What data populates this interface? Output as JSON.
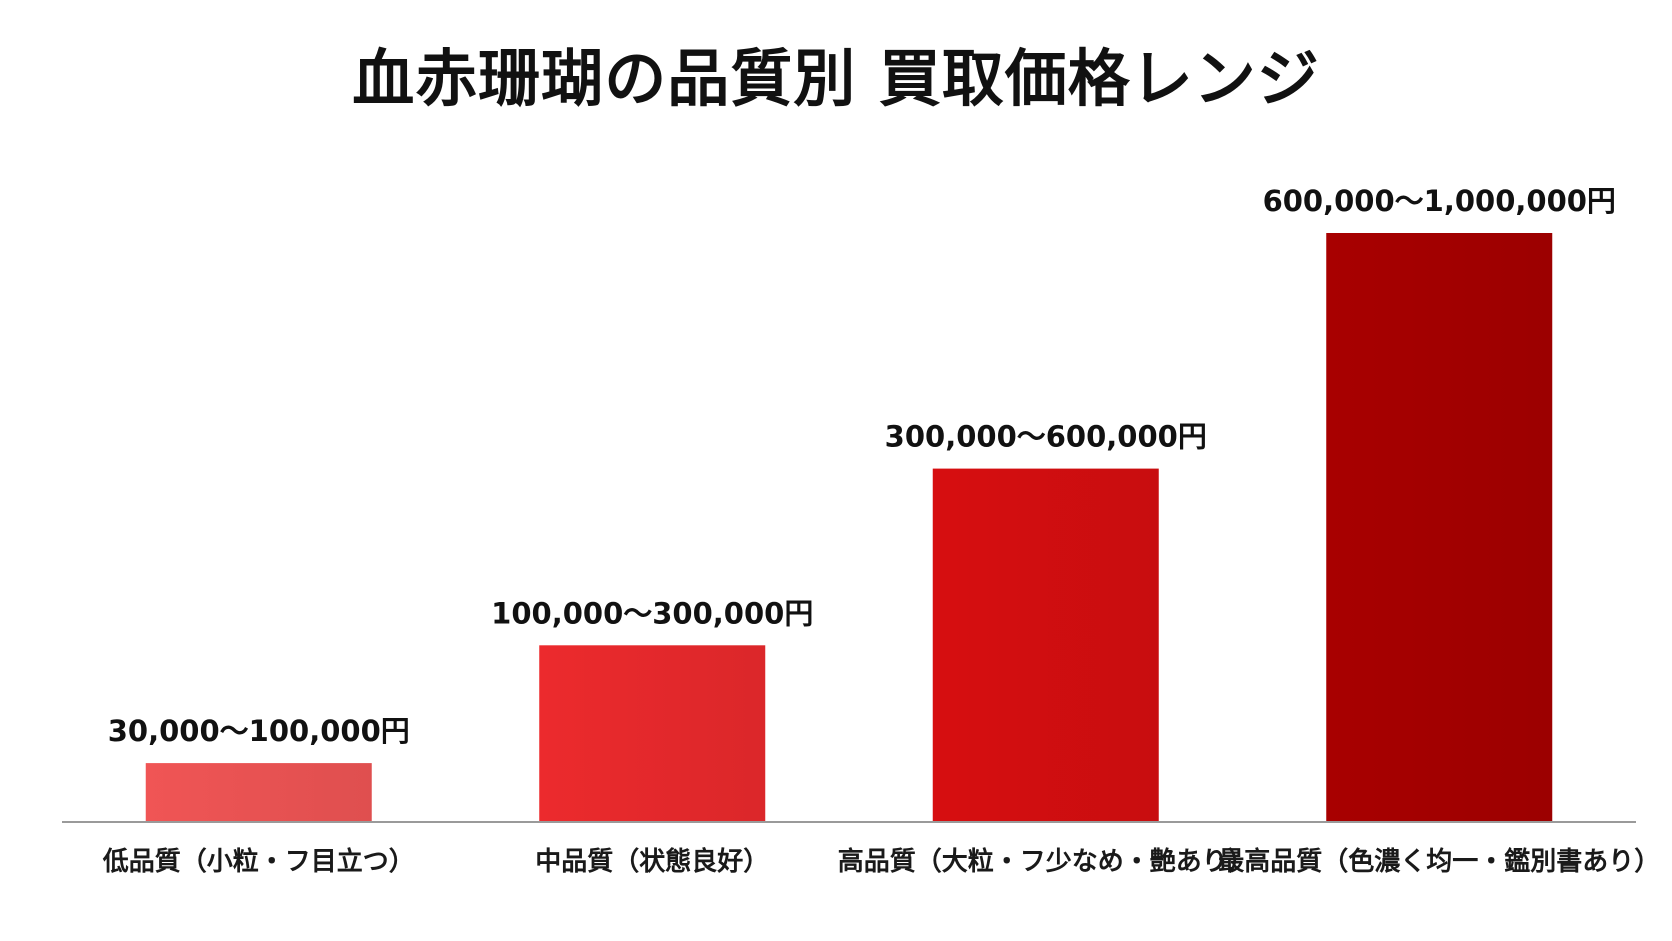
{
  "chart_data": {
    "type": "bar",
    "title": "血赤珊瑚の品質別 買取価格レンジ",
    "xlabel": "",
    "ylabel": "",
    "categories": [
      "低品質（小粒・フ目立つ）",
      "中品質（状態良好）",
      "高品質（大粒・フ少なめ・艶あり）",
      "最高品質（色濃く均一・鑑別書あり）"
    ],
    "series": [
      {
        "ranges": [
          [
            30000,
            100000
          ],
          [
            100000,
            300000
          ],
          [
            300000,
            600000
          ],
          [
            600000,
            1000000
          ]
        ],
        "values": [
          100000,
          300000,
          600000,
          1000000
        ],
        "labels": [
          "30,000〜100,000円",
          "100,000〜300,000円",
          "300,000〜600,000円",
          "600,000〜1,000,000円"
        ]
      }
    ],
    "colors": [
      "#f05555",
      "#ec2a2d",
      "#d70e10",
      "#a80000"
    ],
    "axis_color": "#9a9a9a",
    "grid": false,
    "legend": "none"
  }
}
